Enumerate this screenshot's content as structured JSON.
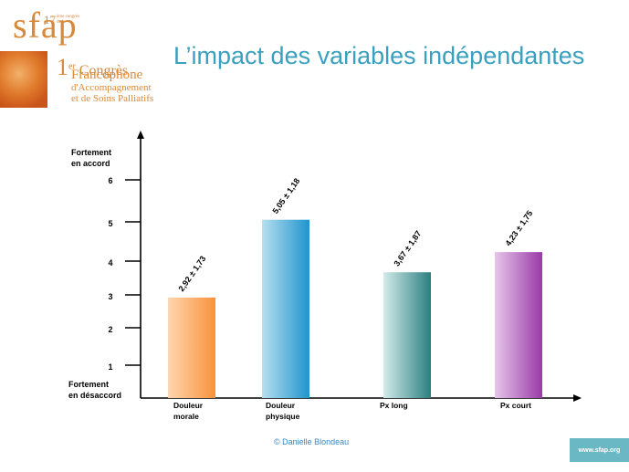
{
  "logo": {
    "brand": "sfap",
    "edition": "17",
    "edition_small": "ème congrès de la",
    "conference_num": "1",
    "conference_sup": "er",
    "conference_l1": "Congrès",
    "conference_l2": "Francophone",
    "conference_l3": "d'Accompagnement",
    "conference_l4": "et de Soins Palliatifs"
  },
  "title": "L’impact des variables indépendantes",
  "footer": {
    "credit": "© Danielle Blondeau",
    "site": "www.sfap.org"
  },
  "chart_data": {
    "type": "bar",
    "title": "L’impact des variables indépendantes",
    "y_top_label": [
      "Fortement",
      "en accord"
    ],
    "y_bottom_label": [
      "Fortement",
      "en désaccord"
    ],
    "y_ticks": [
      "1",
      "2",
      "3",
      "4",
      "5",
      "6"
    ],
    "categories": [
      [
        "Douleur",
        "morale"
      ],
      [
        "Douleur",
        "physique"
      ],
      [
        "Px long"
      ],
      [
        "Px court"
      ]
    ],
    "values": [
      2.92,
      5.05,
      3.67,
      4.23
    ],
    "value_labels": [
      "2,92 ± 1,73",
      "5,05 ± 1,18",
      "3,67 ± 1,87",
      "4,23 ± 1,75"
    ],
    "colors": [
      [
        "#ffd6b0",
        "#f7923a"
      ],
      [
        "#b7dff0",
        "#1f95cd"
      ],
      [
        "#d3ebea",
        "#2b7f80"
      ],
      [
        "#e6c6ea",
        "#9a3aa8"
      ]
    ],
    "grid": false
  }
}
